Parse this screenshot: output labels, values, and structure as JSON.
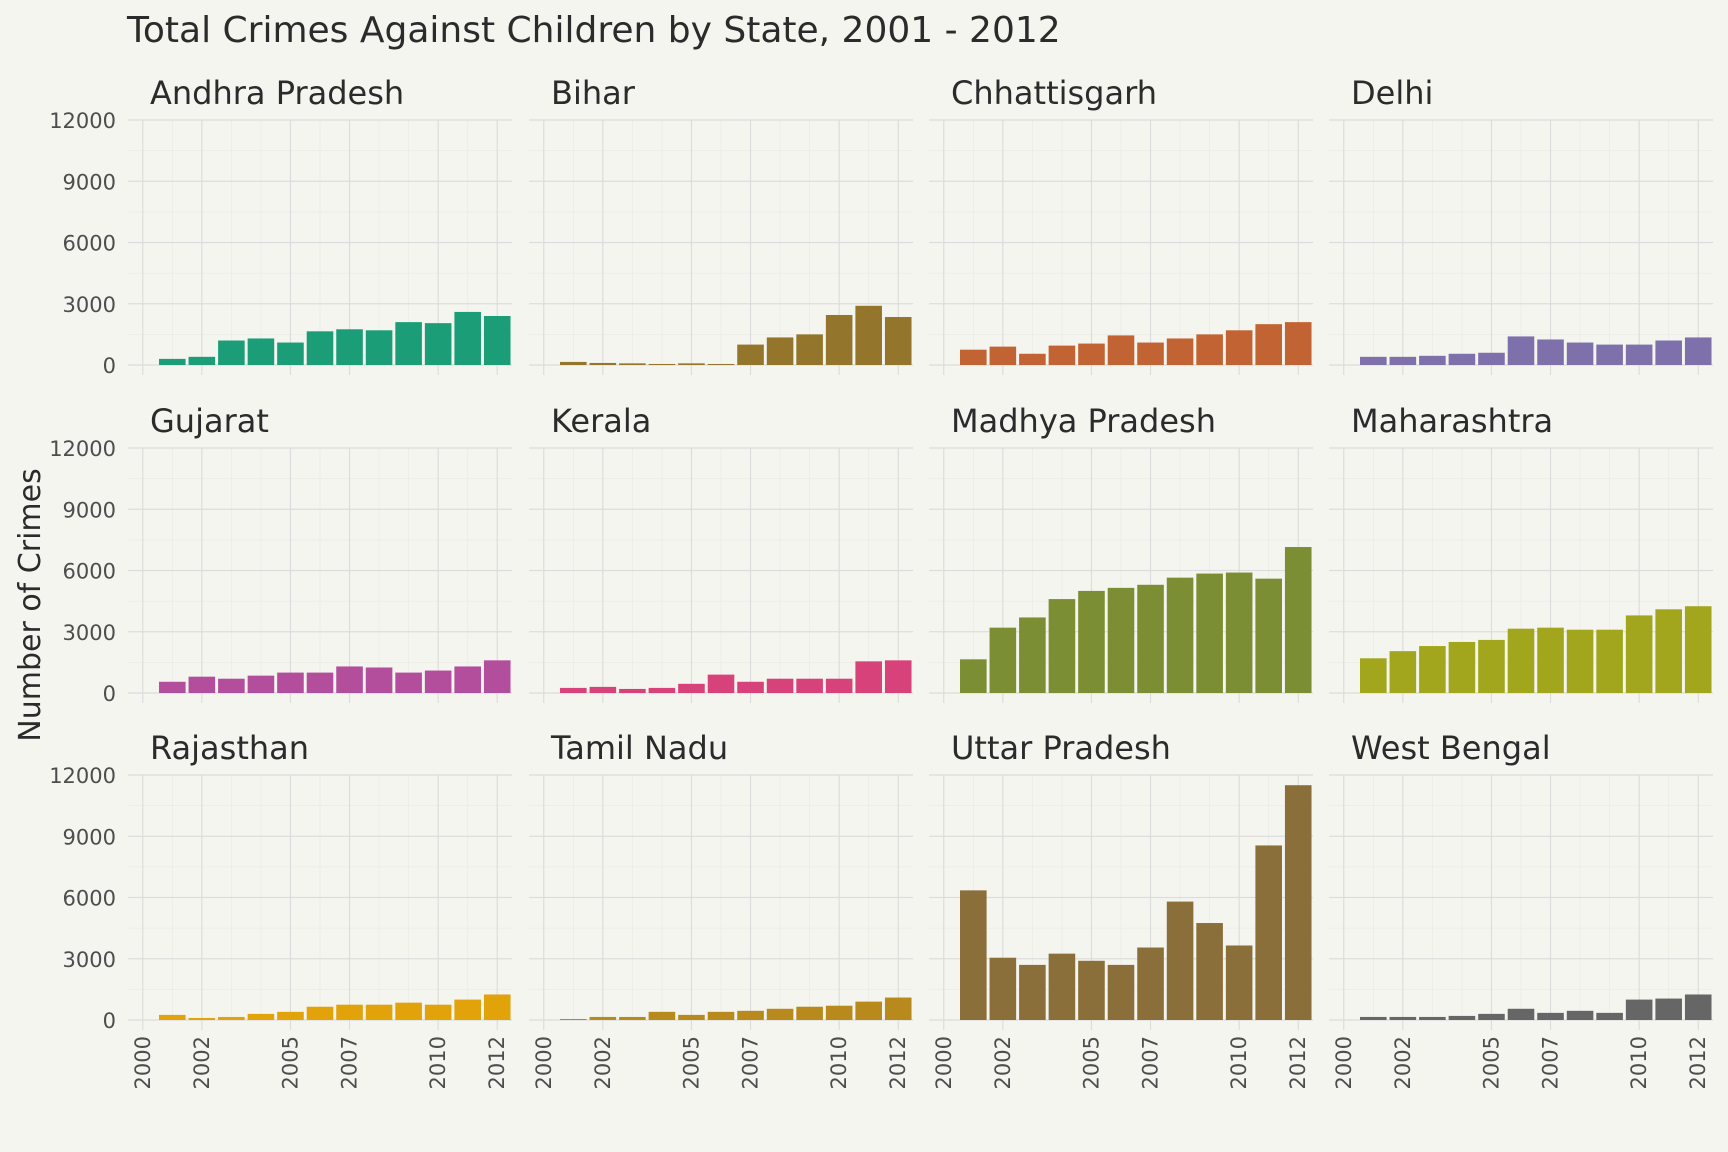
{
  "chart_data": {
    "type": "bar",
    "title": "Total Crimes Against Children by State, 2001 - 2012",
    "ylabel": "Number of Crimes",
    "xlabel": "",
    "x": [
      2001,
      2002,
      2003,
      2004,
      2005,
      2006,
      2007,
      2008,
      2009,
      2010,
      2011,
      2012
    ],
    "xlim": [
      2000,
      2012
    ],
    "ylim": [
      0,
      12000
    ],
    "x_ticks": [
      "2000",
      "2002",
      "2005",
      "2007",
      "2010",
      "2012"
    ],
    "y_ticks": [
      "0",
      "3000",
      "6000",
      "9000",
      "12000"
    ],
    "grid": true,
    "series": [
      {
        "name": "Andhra Pradesh",
        "color": "#1b9e77",
        "values": [
          300,
          400,
          1200,
          1300,
          1100,
          1650,
          1750,
          1700,
          2100,
          2050,
          2600,
          2400
        ]
      },
      {
        "name": "Bihar",
        "color": "#93752c",
        "values": [
          150,
          100,
          80,
          50,
          80,
          50,
          1000,
          1350,
          1500,
          2450,
          2900,
          2350
        ]
      },
      {
        "name": "Chhattisgarh",
        "color": "#c16332",
        "values": [
          750,
          900,
          550,
          950,
          1050,
          1450,
          1100,
          1300,
          1500,
          1700,
          2000,
          2100
        ]
      },
      {
        "name": "Delhi",
        "color": "#7e71ab",
        "values": [
          400,
          400,
          450,
          550,
          600,
          1400,
          1250,
          1100,
          1000,
          1000,
          1200,
          1350
        ]
      },
      {
        "name": "Gujarat",
        "color": "#b34e9c",
        "values": [
          550,
          800,
          700,
          850,
          1000,
          1000,
          1300,
          1250,
          1000,
          1100,
          1300,
          1600
        ]
      },
      {
        "name": "Kerala",
        "color": "#d8427a",
        "values": [
          250,
          300,
          200,
          250,
          450,
          900,
          550,
          700,
          700,
          700,
          1550,
          1600
        ]
      },
      {
        "name": "Madhya Pradesh",
        "color": "#7b8e33",
        "values": [
          1650,
          3200,
          3700,
          4600,
          5000,
          5150,
          5300,
          5650,
          5850,
          5900,
          5600,
          7150
        ]
      },
      {
        "name": "Maharashtra",
        "color": "#a2a61d",
        "values": [
          1700,
          2050,
          2300,
          2500,
          2600,
          3150,
          3200,
          3100,
          3100,
          3800,
          4100,
          4250
        ]
      },
      {
        "name": "Rajasthan",
        "color": "#e1a20a",
        "values": [
          250,
          100,
          150,
          300,
          400,
          650,
          750,
          750,
          850,
          750,
          1000,
          1250
        ]
      },
      {
        "name": "Tamil Nadu",
        "color": "#b8891c",
        "values": [
          50,
          150,
          150,
          400,
          250,
          400,
          450,
          550,
          650,
          700,
          900,
          1100
        ]
      },
      {
        "name": "Uttar Pradesh",
        "color": "#8a6f3a",
        "values": [
          6350,
          3050,
          2700,
          3250,
          2900,
          2700,
          3550,
          5800,
          4750,
          3650,
          8550,
          11500
        ]
      },
      {
        "name": "West Bengal",
        "color": "#666666",
        "values": [
          150,
          150,
          150,
          200,
          300,
          550,
          350,
          450,
          350,
          1000,
          1050,
          1250
        ]
      }
    ]
  }
}
